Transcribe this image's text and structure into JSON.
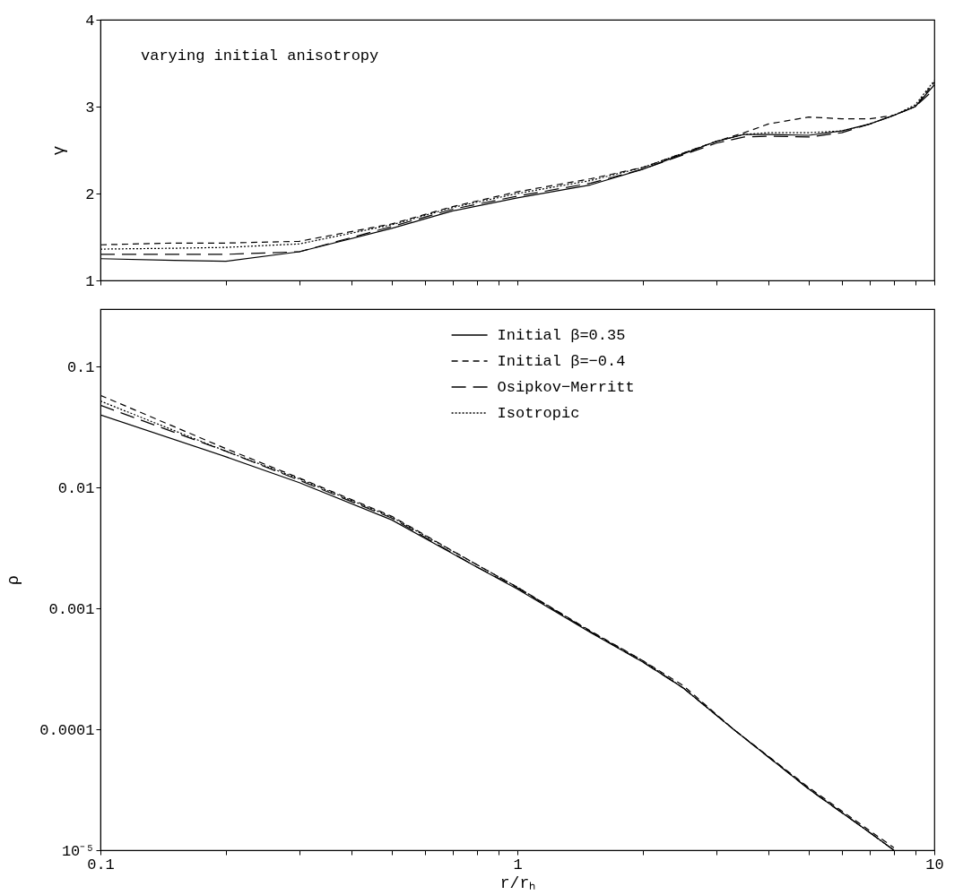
{
  "chart_data": [
    {
      "type": "line",
      "ylabel": "γ",
      "annotations": [
        "varying initial anisotropy"
      ],
      "log": "x",
      "legend": false,
      "grid": false,
      "tick_labels": "y",
      "x": [
        0.1,
        0.15,
        0.2,
        0.3,
        0.5,
        0.7,
        1,
        1.5,
        2,
        3,
        3.5,
        4,
        5,
        6,
        7,
        8,
        9,
        10
      ],
      "xlim": [
        0.1,
        10
      ],
      "ylim": [
        1,
        4
      ],
      "xticks": [
        0.1,
        {
          "value": 0.2,
          "label": null
        },
        {
          "value": 0.3,
          "label": null
        },
        {
          "value": 0.4,
          "label": null
        },
        {
          "value": 0.5,
          "label": null
        },
        {
          "value": 0.6,
          "label": null
        },
        {
          "value": 0.7,
          "label": null
        },
        {
          "value": 0.8,
          "label": null
        },
        {
          "value": 0.9,
          "label": null
        },
        1,
        {
          "value": 2,
          "label": null
        },
        {
          "value": 3,
          "label": null
        },
        {
          "value": 4,
          "label": null
        },
        {
          "value": 5,
          "label": null
        },
        {
          "value": 6,
          "label": null
        },
        {
          "value": 7,
          "label": null
        },
        {
          "value": 8,
          "label": null
        },
        {
          "value": 9,
          "label": null
        },
        10
      ],
      "yticks": [
        1,
        2,
        3,
        4
      ],
      "series": [
        {
          "color": "#000000",
          "line_style": "solid",
          "values": [
            1.25,
            1.23,
            1.22,
            1.33,
            1.6,
            1.8,
            1.95,
            2.1,
            2.28,
            2.6,
            2.68,
            2.68,
            2.67,
            2.72,
            2.8,
            2.9,
            3.0,
            3.25
          ]
        },
        {
          "color": "#000000",
          "line_style": "dashed",
          "values": [
            1.41,
            1.43,
            1.43,
            1.45,
            1.65,
            1.85,
            2.02,
            2.17,
            2.3,
            2.6,
            2.7,
            2.8,
            2.88,
            2.86,
            2.86,
            2.9,
            3.0,
            3.28
          ]
        },
        {
          "color": "#000000",
          "line_style": "dashed",
          "values": [
            1.3,
            1.3,
            1.3,
            1.33,
            1.62,
            1.82,
            1.97,
            2.12,
            2.28,
            2.58,
            2.65,
            2.66,
            2.65,
            2.7,
            2.8,
            2.9,
            3.0,
            3.2
          ]
        },
        {
          "color": "#000000",
          "line_style": "dotted",
          "values": [
            1.36,
            1.37,
            1.38,
            1.42,
            1.64,
            1.84,
            2.0,
            2.15,
            2.3,
            2.6,
            2.68,
            2.7,
            2.7,
            2.72,
            2.8,
            2.9,
            3.02,
            3.3
          ]
        }
      ]
    },
    {
      "type": "line",
      "xlabel": "r/rₕ",
      "ylabel": "ρ",
      "log": "xy",
      "legend": "top right",
      "grid": false,
      "x": [
        0.1,
        0.2,
        0.3,
        0.5,
        0.8,
        1,
        1.5,
        2,
        2.5,
        3.3,
        5,
        7,
        8
      ],
      "xlim": [
        0.1,
        10
      ],
      "ylim": [
        1e-05,
        0.3
      ],
      "xticks": [
        0.1,
        {
          "value": 0.2,
          "label": null
        },
        {
          "value": 0.3,
          "label": null
        },
        {
          "value": 0.4,
          "label": null
        },
        {
          "value": 0.5,
          "label": null
        },
        {
          "value": 0.6,
          "label": null
        },
        {
          "value": 0.7,
          "label": null
        },
        {
          "value": 0.8,
          "label": null
        },
        {
          "value": 0.9,
          "label": null
        },
        1,
        {
          "value": 2,
          "label": null
        },
        {
          "value": 3,
          "label": null
        },
        {
          "value": 4,
          "label": null
        },
        {
          "value": 5,
          "label": null
        },
        {
          "value": 6,
          "label": null
        },
        {
          "value": 7,
          "label": null
        },
        {
          "value": 8,
          "label": null
        },
        {
          "value": 9,
          "label": null
        },
        10
      ],
      "yticks": [
        {
          "value": 1e-05,
          "label": "10⁻⁵"
        },
        0.0001,
        0.001,
        0.01,
        0.1
      ],
      "series": [
        {
          "name": "Initial β=0.35",
          "color": "#000000",
          "line_style": "solid",
          "values": [
            0.04,
            0.018,
            0.011,
            0.0054,
            0.0022,
            0.00145,
            0.00063,
            0.00036,
            0.00022,
            0.0001,
            3.2e-05,
            1.4e-05,
            1e-05
          ]
        },
        {
          "name": "Initial β=−0.4",
          "color": "#000000",
          "line_style": "dashed",
          "values": [
            0.058,
            0.021,
            0.012,
            0.0058,
            0.0023,
            0.0015,
            0.00065,
            0.00037,
            0.00023,
            0.0001,
            3.3e-05,
            1.45e-05,
            1.05e-05
          ]
        },
        {
          "name": "Osipkov−Merritt",
          "color": "#000000",
          "line_style": "dashed",
          "values": [
            0.048,
            0.02,
            0.0115,
            0.0056,
            0.0022,
            0.00148,
            0.00064,
            0.00036,
            0.00022,
            0.0001,
            3.2e-05,
            1.4e-05,
            1e-05
          ]
        },
        {
          "name": "Isotropic",
          "color": "#000000",
          "line_style": "dotted",
          "values": [
            0.052,
            0.02,
            0.0118,
            0.0057,
            0.0023,
            0.0015,
            0.00064,
            0.00037,
            0.00022,
            0.0001,
            3.25e-05,
            1.4e-05,
            1e-05
          ]
        }
      ]
    }
  ]
}
